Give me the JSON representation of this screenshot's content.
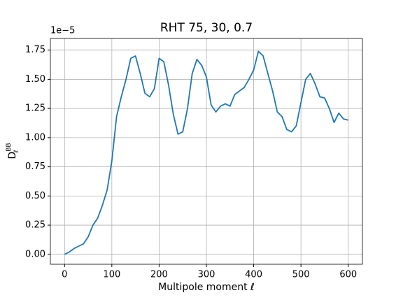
{
  "chart_data": {
    "type": "line",
    "title": "RHT 75, 30, 0.7",
    "xlabel": "Multipole moment ℓ",
    "ylabel": {
      "base": "D",
      "sub": "ℓ",
      "sup": "BB"
    },
    "y_offset_label": "1e−5",
    "x": [
      0,
      10,
      20,
      30,
      40,
      50,
      60,
      70,
      80,
      90,
      100,
      110,
      120,
      130,
      140,
      150,
      160,
      170,
      180,
      190,
      200,
      210,
      220,
      230,
      240,
      250,
      260,
      270,
      280,
      290,
      300,
      310,
      320,
      330,
      340,
      350,
      360,
      370,
      380,
      390,
      400,
      410,
      420,
      430,
      440,
      450,
      460,
      470,
      480,
      490,
      500,
      510,
      520,
      530,
      540,
      550,
      560,
      570,
      580,
      590,
      600
    ],
    "series": [
      {
        "name": "D_BB",
        "color": "#1f77b4",
        "values": [
          0.0,
          0.02,
          0.05,
          0.07,
          0.09,
          0.15,
          0.25,
          0.31,
          0.42,
          0.55,
          0.8,
          1.18,
          1.35,
          1.5,
          1.68,
          1.7,
          1.55,
          1.38,
          1.35,
          1.42,
          1.68,
          1.65,
          1.45,
          1.2,
          1.03,
          1.05,
          1.25,
          1.55,
          1.67,
          1.62,
          1.52,
          1.28,
          1.22,
          1.27,
          1.29,
          1.27,
          1.37,
          1.4,
          1.43,
          1.5,
          1.58,
          1.74,
          1.7,
          1.55,
          1.4,
          1.22,
          1.18,
          1.07,
          1.05,
          1.1,
          1.3,
          1.5,
          1.55,
          1.46,
          1.35,
          1.34,
          1.25,
          1.13,
          1.21,
          1.16,
          1.15
        ]
      }
    ],
    "xlim": [
      -30,
      630
    ],
    "ylim": [
      -0.085,
      1.85
    ],
    "xticks": [
      0,
      100,
      200,
      300,
      400,
      500,
      600
    ],
    "yticks": [
      {
        "value": 0,
        "label": "0.00"
      },
      0.25,
      {
        "value": 0.5,
        "label": "0.50"
      },
      0.75,
      {
        "value": 1,
        "label": "1.00"
      },
      1.25,
      {
        "value": 1.5,
        "label": "1.50"
      },
      1.75
    ],
    "grid": true
  }
}
